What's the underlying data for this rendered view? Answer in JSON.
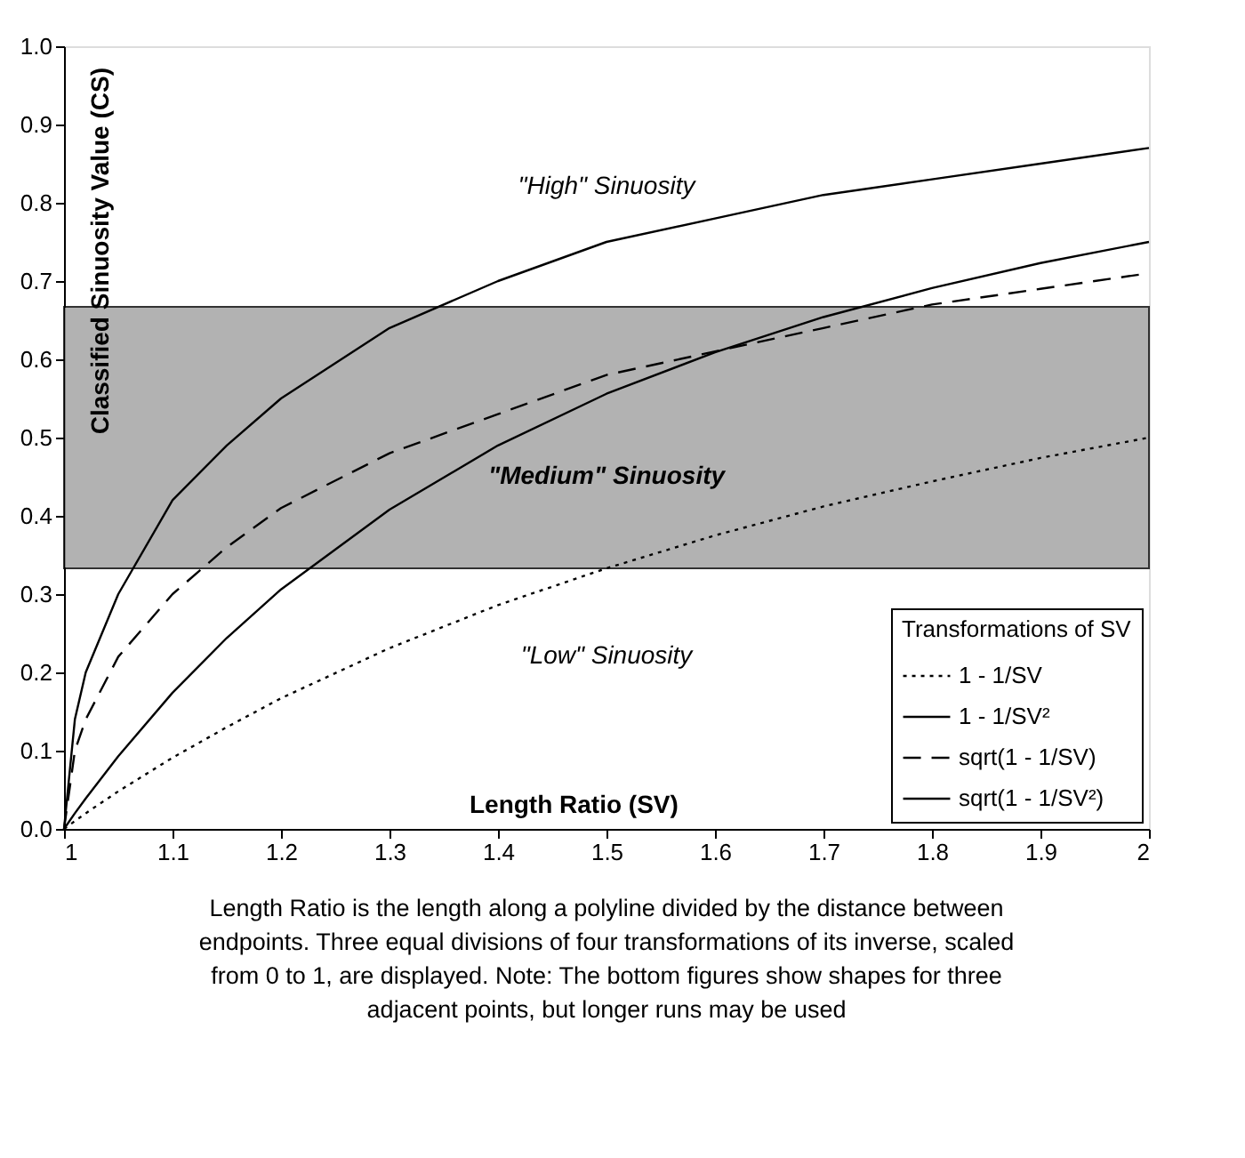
{
  "chart_data": {
    "type": "line",
    "xlabel": "Length Ratio (SV)",
    "ylabel": "Classified Sinuosity Value (CS)",
    "legend_title": "Transformations of SV",
    "legend": "bottom right",
    "grid": false,
    "marker": "none",
    "x": [
      1,
      1.01,
      1.02,
      1.05,
      1.1,
      1.15,
      1.2,
      1.3,
      1.4,
      1.5,
      1.6,
      1.7,
      1.8,
      1.9,
      2
    ],
    "xlim": [
      1,
      2
    ],
    "xticks": [
      1,
      1.1,
      1.2,
      1.3,
      1.4,
      1.5,
      1.6,
      1.7,
      1.8,
      1.9,
      2
    ],
    "ylim": [
      0,
      1
    ],
    "yticks": [
      {
        "value": 0,
        "label": "0.0"
      },
      0.1,
      0.2,
      0.3,
      0.4,
      0.5,
      0.6,
      0.7,
      0.8,
      0.9,
      {
        "value": 1,
        "label": "1.0"
      }
    ],
    "series": [
      {
        "name": "1 - 1/SV",
        "color": "#000000",
        "line_style": "dotted",
        "values": [
          0,
          0.01,
          0.02,
          0.048,
          0.091,
          0.13,
          0.167,
          0.231,
          0.286,
          0.333,
          0.375,
          0.412,
          0.444,
          0.474,
          0.5
        ]
      },
      {
        "name": "1 - 1/SV²",
        "color": "#000000",
        "line_style": "solid",
        "values": [
          0,
          0.02,
          0.039,
          0.093,
          0.174,
          0.244,
          0.306,
          0.408,
          0.49,
          0.556,
          0.609,
          0.654,
          0.691,
          0.723,
          0.75
        ]
      },
      {
        "name": "sqrt(1 - 1/SV)",
        "color": "#000000",
        "line_style": "dashed",
        "values": [
          0,
          0.1,
          0.14,
          0.22,
          0.3,
          0.36,
          0.41,
          0.48,
          0.53,
          0.58,
          0.61,
          0.64,
          0.67,
          0.69,
          0.71
        ]
      },
      {
        "name": "sqrt(1 - 1/SV²)",
        "color": "#000000",
        "line_style": "solid",
        "values": [
          0,
          0.14,
          0.2,
          0.3,
          0.42,
          0.49,
          0.55,
          0.64,
          0.7,
          0.75,
          0.78,
          0.81,
          0.83,
          0.85,
          0.87
        ]
      }
    ],
    "bands": [
      {
        "axis": "y",
        "from": 0.333,
        "to": 0.667,
        "color": "#a0a0a0"
      }
    ],
    "annotations": [
      "\"High\" Sinuosity",
      "\"Medium\" Sinuosity",
      "\"Low\" Sinuosity",
      "Length Ratio is the length along a polyline divided by the distance between endpoints. Three equal divisions of four transformations of its inverse, scaled from 0 to 1, are displayed. Note: The bottom figures show shapes for three adjacent points, but longer runs may be used"
    ]
  }
}
